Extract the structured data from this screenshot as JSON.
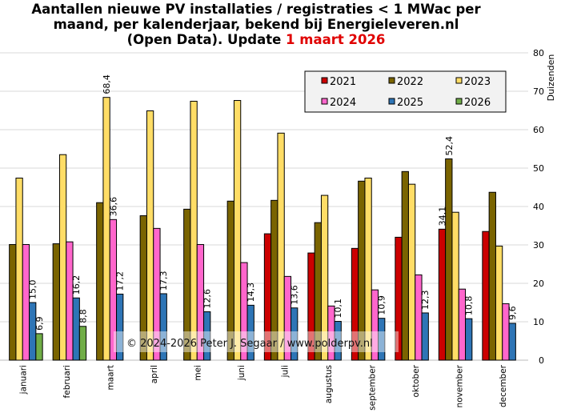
{
  "chart_data": {
    "type": "bar",
    "title_lines": [
      "Aantallen  nieuwe PV installaties  / registraties  < 1 MWac per",
      "maand, per kalenderjaar, bekend bij Energieleveren.nl",
      "(Open Data). Update "
    ],
    "title_highlight": "1 maart 2026",
    "ylabel": "Duizenden",
    "ylim": [
      0,
      80
    ],
    "yticks": [
      0,
      10,
      20,
      30,
      40,
      50,
      60,
      70,
      80
    ],
    "grid": true,
    "legend_position": "top-right",
    "categories": [
      "januari",
      "februari",
      "maart",
      "april",
      "mei",
      "juni",
      "juli",
      "augustus",
      "september",
      "oktober",
      "november",
      "december"
    ],
    "series": [
      {
        "name": "2021",
        "color": "#cc0000",
        "values": [
          null,
          null,
          null,
          null,
          null,
          null,
          32.9,
          27.9,
          29.1,
          32.0,
          34.1,
          33.5
        ],
        "labels": [
          null,
          null,
          null,
          null,
          null,
          null,
          null,
          null,
          null,
          null,
          "34,1",
          null
        ]
      },
      {
        "name": "2022",
        "color": "#7a6400",
        "values": [
          30.1,
          30.3,
          41.0,
          37.6,
          39.3,
          41.4,
          41.6,
          35.8,
          46.6,
          49.1,
          52.4,
          43.7
        ],
        "labels": [
          null,
          null,
          null,
          null,
          null,
          null,
          null,
          null,
          null,
          null,
          "52,4",
          null
        ]
      },
      {
        "name": "2023",
        "color": "#ffdd66",
        "values": [
          47.4,
          53.5,
          68.4,
          64.9,
          67.4,
          67.6,
          59.1,
          42.9,
          47.4,
          45.8,
          38.5,
          29.7
        ],
        "labels": [
          null,
          null,
          "68,4",
          null,
          null,
          null,
          null,
          null,
          null,
          null,
          null,
          null
        ]
      },
      {
        "name": "2024",
        "color": "#ff66cc",
        "values": [
          30.1,
          30.8,
          36.6,
          34.3,
          30.1,
          25.4,
          21.8,
          14.1,
          18.3,
          22.2,
          18.5,
          14.7
        ],
        "labels": [
          null,
          null,
          "36,6",
          null,
          null,
          null,
          null,
          null,
          null,
          null,
          null,
          null
        ]
      },
      {
        "name": "2025",
        "color": "#2e75b6",
        "values": [
          15.0,
          16.2,
          17.2,
          17.3,
          12.6,
          14.3,
          13.6,
          10.1,
          10.9,
          12.3,
          10.8,
          9.6
        ],
        "labels": [
          "15,0",
          "16,2",
          "17,2",
          "17,3",
          "12,6",
          "14,3",
          "13,6",
          "10,1",
          "10,9",
          "12,3",
          "10,8",
          "9,6"
        ]
      },
      {
        "name": "2026",
        "color": "#70ad47",
        "values": [
          6.9,
          8.8,
          null,
          null,
          null,
          null,
          null,
          null,
          null,
          null,
          null,
          null
        ],
        "labels": [
          "6,9",
          "8,8",
          null,
          null,
          null,
          null,
          null,
          null,
          null,
          null,
          null,
          null
        ]
      }
    ],
    "watermark": "© 2024-2026  Peter J. Segaar / www.polderpv.nl"
  }
}
